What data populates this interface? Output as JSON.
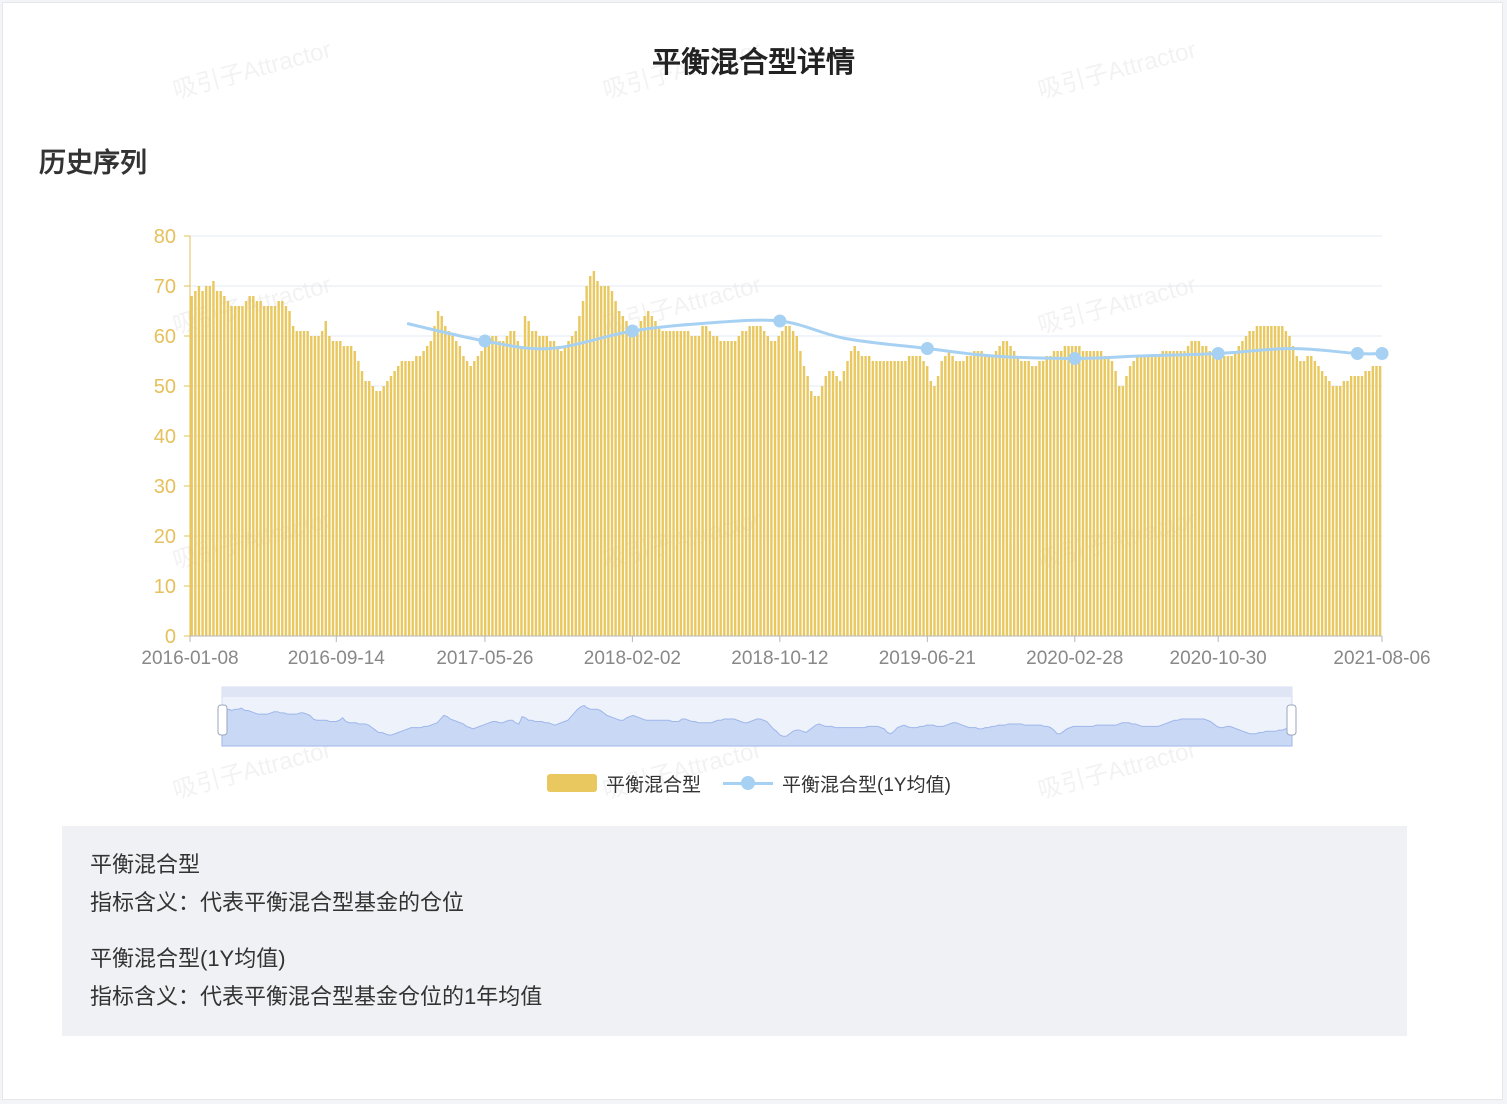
{
  "page": {
    "title": "平衡混合型详情",
    "section_title": "历史序列",
    "watermark": "吸引子Attractor"
  },
  "legend": {
    "bar_label": "平衡混合型",
    "line_label": "平衡混合型(1Y均值)"
  },
  "colors": {
    "bar": "#e9c85f",
    "line": "#a7d1f3",
    "axis_label": "#e6c05a",
    "tick_label": "#888888",
    "grid": "#e3e8f2",
    "slider_fill": "#c9d8f5",
    "slider_bg": "#eef2fb"
  },
  "chart_data": {
    "type": "bar",
    "title": "",
    "xlabel": "",
    "ylabel": "",
    "ylim": [
      0,
      80
    ],
    "yticks": [
      0,
      10,
      20,
      30,
      40,
      50,
      60,
      70,
      80
    ],
    "xtick_labels": [
      "2016-01-08",
      "2016-09-14",
      "2017-05-26",
      "2018-02-02",
      "2018-10-12",
      "2019-06-21",
      "2020-02-28",
      "2020-10-30",
      "2021-08-06"
    ],
    "x_start": "2016-01-08",
    "x_end": "2021-08-06",
    "grid": true,
    "legend_position": "bottom",
    "series": [
      {
        "name": "平衡混合型",
        "type": "bar",
        "frequency": "weekly",
        "values": [
          68,
          69,
          70,
          69,
          70,
          70,
          71,
          69,
          69,
          68,
          67,
          66,
          66,
          66,
          66,
          67,
          68,
          68,
          67,
          67,
          66,
          66,
          66,
          66,
          67,
          67,
          66,
          65,
          62,
          61,
          61,
          61,
          61,
          60,
          60,
          60,
          61,
          63,
          60,
          59,
          59,
          59,
          58,
          58,
          58,
          57,
          55,
          53,
          51,
          51,
          50,
          49,
          49,
          50,
          51,
          52,
          53,
          54,
          55,
          55,
          55,
          55,
          56,
          56,
          57,
          58,
          59,
          62,
          65,
          64,
          62,
          61,
          60,
          59,
          58,
          56,
          55,
          54,
          55,
          56,
          57,
          58,
          59,
          60,
          60,
          59,
          59,
          60,
          61,
          61,
          59,
          58,
          64,
          63,
          61,
          61,
          60,
          60,
          60,
          59,
          59,
          58,
          57,
          58,
          59,
          60,
          61,
          64,
          67,
          70,
          72,
          73,
          71,
          70,
          70,
          70,
          69,
          67,
          65,
          64,
          63,
          62,
          61,
          61,
          63,
          64,
          65,
          64,
          63,
          62,
          61,
          61,
          61,
          61,
          61,
          61,
          61,
          61,
          60,
          60,
          60,
          62,
          62,
          61,
          60,
          60,
          59,
          59,
          59,
          59,
          59,
          60,
          61,
          61,
          62,
          62,
          62,
          62,
          61,
          60,
          59,
          59,
          60,
          61,
          62,
          62,
          61,
          60,
          57,
          54,
          52,
          49,
          48,
          48,
          50,
          52,
          53,
          53,
          52,
          51,
          53,
          55,
          57,
          58,
          57,
          56,
          56,
          56,
          55,
          55,
          55,
          55,
          55,
          55,
          55,
          55,
          55,
          55,
          56,
          56,
          56,
          56,
          55,
          54,
          51,
          50,
          52,
          55,
          56,
          57,
          56,
          55,
          55,
          55,
          56,
          56,
          57,
          57,
          57,
          56,
          56,
          56,
          57,
          58,
          59,
          59,
          58,
          57,
          56,
          55,
          55,
          55,
          54,
          54,
          55,
          55,
          56,
          56,
          57,
          57,
          57,
          58,
          58,
          58,
          58,
          58,
          57,
          57,
          57,
          57,
          57,
          57,
          56,
          56,
          55,
          53,
          50,
          50,
          52,
          54,
          55,
          56,
          56,
          56,
          56,
          56,
          56,
          56,
          57,
          57,
          57,
          57,
          57,
          57,
          57,
          58,
          59,
          59,
          59,
          58,
          58,
          57,
          56,
          56,
          56,
          56,
          56,
          56,
          57,
          58,
          59,
          60,
          61,
          61,
          62,
          62,
          62,
          62,
          62,
          62,
          62,
          62,
          61,
          60,
          58,
          56,
          55,
          55,
          56,
          56,
          55,
          54,
          53,
          52,
          51,
          50,
          50,
          50,
          51,
          51,
          52,
          52,
          52,
          52,
          53,
          53,
          54,
          54,
          54
        ]
      },
      {
        "name": "平衡混合型(1Y均值)",
        "type": "line",
        "x": [
          "2017-01-13",
          "2017-05-26",
          "2017-09-15",
          "2018-02-02",
          "2018-06-01",
          "2018-10-12",
          "2019-02-01",
          "2019-06-21",
          "2019-10-11",
          "2020-02-28",
          "2020-06-19",
          "2020-10-30",
          "2021-03-05",
          "2021-06-25",
          "2021-08-06"
        ],
        "values": [
          62.5,
          59,
          57.5,
          61,
          62.5,
          63,
          59.5,
          57.5,
          56,
          55.5,
          56,
          56.5,
          57.5,
          56.5,
          56.5
        ],
        "marked_points": [
          "2017-05-26",
          "2018-02-02",
          "2018-10-12",
          "2019-06-21",
          "2020-02-28",
          "2020-10-30",
          "2021-06-25",
          "2021-08-06"
        ]
      }
    ]
  },
  "info": [
    {
      "name": "平衡混合型",
      "desc": "指标含义：代表平衡混合型基金的仓位"
    },
    {
      "name": "平衡混合型(1Y均值)",
      "desc": "指标含义：代表平衡混合型基金仓位的1年均值"
    }
  ]
}
